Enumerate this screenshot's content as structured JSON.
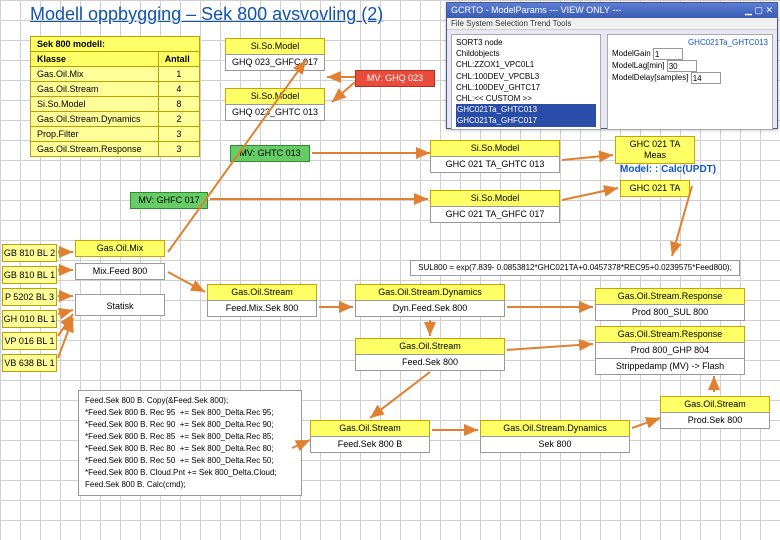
{
  "title": "Modell oppbygging – Sek 800 avsvovling (2)",
  "table": {
    "caption": "Sek 800 modell:",
    "cols": [
      "Klasse",
      "Antall"
    ],
    "rows": [
      [
        "Gas.Oil.Mix",
        "1"
      ],
      [
        "Gas.Oil.Stream",
        "4"
      ],
      [
        "Si.So.Model",
        "8"
      ],
      [
        "Gas.Oil.Stream.Dynamics",
        "2"
      ],
      [
        "Prop.Filter",
        "3"
      ],
      [
        "Gas.Oil.Stream.Response",
        "3"
      ]
    ]
  },
  "sidebar": [
    "GB 810 BL 2",
    "GB 810 BL 1",
    "P 5202 BL 3",
    "GH 010 BL 1",
    "VP 016 BL 1",
    "VB 638 BL 1"
  ],
  "nodes": {
    "siso1": "Si.So.Model",
    "siso1sub": "GHQ 023_GHFC 017",
    "mv1": "MV: GHQ 023",
    "siso2": "Si.So.Model",
    "siso2sub": "GHQ 023_GHTC 013",
    "mv2": "MV: GHTC 013",
    "siso3": "Si.So.Model",
    "siso3sub": "GHC 021 TA_GHTC 013",
    "mv3": "MV: GHFC 017",
    "siso4": "Si.So.Model",
    "siso4sub": "GHC 021 TA_GHFC 017",
    "meas": "GHC 021 TA\nMeas",
    "model_label": "Model: : Calc(UPDT)",
    "ghc021": "GHC 021 TA",
    "gasoilmix": "Gas.Oil.Mix",
    "mixfeed": "Mix.Feed 800",
    "statisk": "Statisk",
    "gos1": "Gas.Oil.Stream",
    "gos1sub": "Feed.Mix.Sek 800",
    "gosd1": "Gas.Oil.Stream.Dynamics",
    "gosd1sub": "Dyn.Feed.Sek 800",
    "gosr1": "Gas.Oil.Stream.Response",
    "gosr1sub": "Prod 800_SUL 800",
    "gos2": "Gas.Oil.Stream",
    "gos2sub": "Feed.Sek 800",
    "gosr2a": "Gas.Oil.Stream.Response",
    "gosr2b": "Prod 800_GHP 804",
    "gosr2c": "Strippedamp (MV) -> Flash",
    "gos3": "Gas.Oil.Stream",
    "gos3sub": "Feed.Sek 800 B",
    "gosd2": "Gas.Oil.Stream.Dynamics",
    "gosd2sub": "Sek 800",
    "gos4": "Gas.Oil.Stream",
    "gos4sub": "Prod.Sek 800",
    "sul": "SUL800 = exp(7.839- 0.0853812*GHC021TA+0.0457378*REC95+0.0239575*Feed800);",
    "code": "Feed.Sek 800 B. Copy(&Feed.Sek 800);\n*Feed.Sek 800 B. Rec 95  += Sek 800_Delta.Rec 95;\n*Feed.Sek 800 B. Rec 90  += Sek 800_Delta.Rec 90;\n*Feed.Sek 800 B. Rec 85  += Sek 800_Delta.Rec 85;\n*Feed.Sek 800 B. Rec 80  += Sek 800_Delta.Rec 80;\n*Feed.Sek 800 B. Rec 50  += Sek 800_Delta.Rec 50;\n*Feed.Sek 800 B. Cloud.Pnt += Sek 800_Delta.Cloud;\nFeed.Sek 800 B. Calc(cmd);"
  },
  "screenshot": {
    "title": "GCRTO - ModelParams --- VIEW ONLY ---",
    "menu": "File  System  Selection  Trend  Tools",
    "left_label1": "SORT3 node",
    "left_label2": "Childobjects",
    "list": [
      "CHL:ZZOX1_VPC0L1",
      "CHL:100DEV_VPCBL3",
      "CHL:100DEV_GHTC17",
      "CHL:<< CUSTOM >>"
    ],
    "list_sel1": "GHC021Ta_GHTC013",
    "list_sel2": "GHC021Ta_GHFC017",
    "row_label": "GHC021Ta_GHTC013",
    "r1": "ModelGain",
    "r2": "ModelLag[min]",
    "r3": "ModelDelay[samples]",
    "v1": "1",
    "v2": "30",
    "v3": "14"
  }
}
